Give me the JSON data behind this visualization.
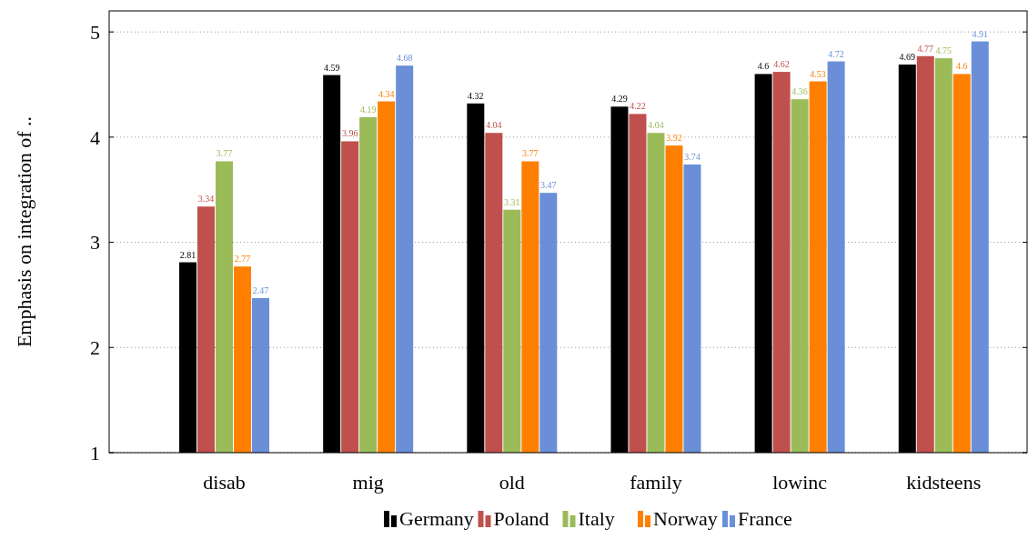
{
  "chart_data": {
    "type": "bar",
    "ylabel": "Emphasis on integration of ..",
    "categories": [
      "disab",
      "mig",
      "old",
      "family",
      "lowinc",
      "kidsteens"
    ],
    "series": [
      {
        "name": "Germany",
        "color": "#000000",
        "values": [
          2.81,
          4.59,
          4.32,
          4.29,
          4.6,
          4.69
        ]
      },
      {
        "name": "Poland",
        "color": "#c0504d",
        "values": [
          3.34,
          3.96,
          4.04,
          4.22,
          4.62,
          4.77
        ]
      },
      {
        "name": "Italy",
        "color": "#9bbb59",
        "values": [
          3.77,
          4.19,
          3.31,
          4.04,
          4.36,
          4.75
        ]
      },
      {
        "name": "Norway",
        "color": "#ff8000",
        "values": [
          2.77,
          4.34,
          3.77,
          3.92,
          4.53,
          4.6
        ]
      },
      {
        "name": "France",
        "color": "#6a8fd8",
        "values": [
          2.47,
          4.68,
          3.47,
          3.74,
          4.72,
          4.91
        ]
      }
    ],
    "ylim": [
      1,
      5.2
    ],
    "yticks": [
      1,
      2,
      3,
      4,
      5
    ],
    "grid": "y",
    "legend": "bottom",
    "data_labels": true
  }
}
